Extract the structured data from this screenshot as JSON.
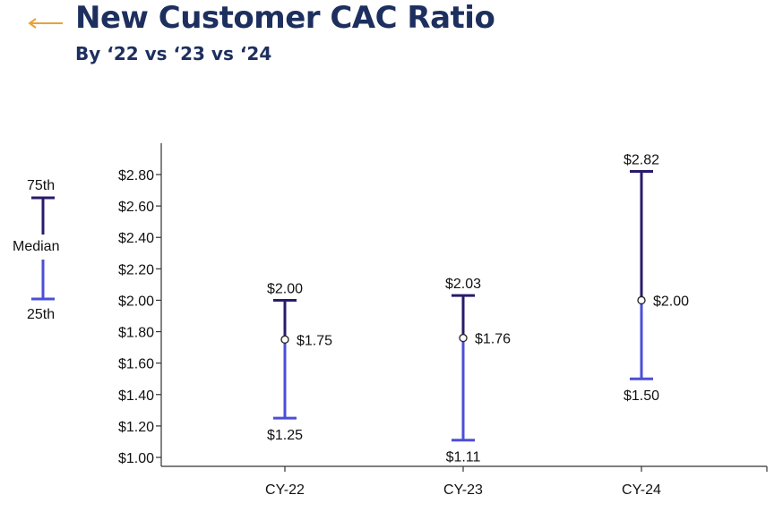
{
  "header": {
    "back_icon": "arrow-left-icon",
    "title": "New Customer CAC Ratio",
    "subtitle": "By ‘22 vs ‘23 vs ‘24"
  },
  "colors": {
    "title": "#1d2f5e",
    "accent_arrow": "#e8a23a",
    "upper_range": "#2a1a6b",
    "lower_range": "#4b4fd6",
    "axis": "#333333"
  },
  "legend": {
    "top_label": "75th",
    "middle_label": "Median",
    "bottom_label": "25th"
  },
  "chart_data": {
    "type": "range",
    "title": "New Customer CAC Ratio",
    "subtitle": "By ‘22 vs ‘23 vs ‘24",
    "categories": [
      "CY-22",
      "CY-23",
      "CY-24"
    ],
    "series": [
      {
        "name": "75th",
        "values": [
          2.0,
          2.03,
          2.82
        ],
        "labels": [
          "$2.00",
          "$2.03",
          "$2.82"
        ]
      },
      {
        "name": "Median",
        "values": [
          1.75,
          1.76,
          2.0
        ],
        "labels": [
          "$1.75",
          "$1.76",
          "$2.00"
        ]
      },
      {
        "name": "25th",
        "values": [
          1.25,
          1.11,
          1.5
        ],
        "labels": [
          "$1.25",
          "$1.11",
          "$1.50"
        ]
      }
    ],
    "yticks": [
      1.0,
      1.2,
      1.4,
      1.6,
      1.8,
      2.0,
      2.2,
      2.4,
      2.6,
      2.8
    ],
    "ytick_labels": [
      "$1.00",
      "$1.20",
      "$1.40",
      "$1.60",
      "$1.80",
      "$2.00",
      "$2.20",
      "$2.40",
      "$2.60",
      "$2.80"
    ],
    "ylim": [
      0.96,
      2.98
    ],
    "xlabel": "",
    "ylabel": "",
    "grid": false,
    "legend_position": "left"
  }
}
